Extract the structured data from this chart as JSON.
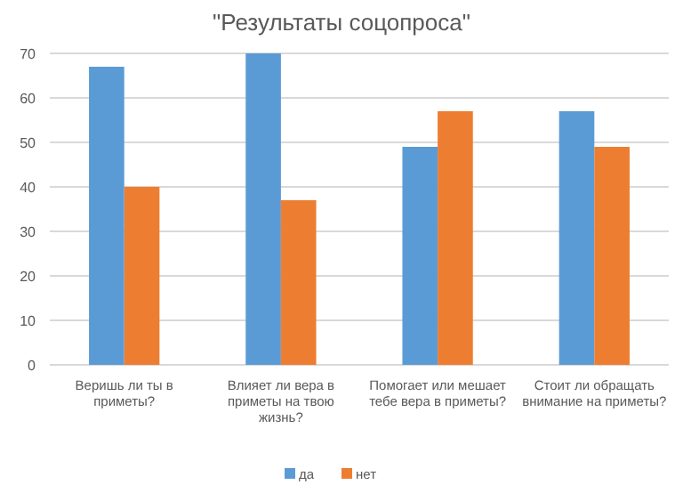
{
  "chart_data": {
    "type": "bar",
    "title": "\"Результаты соцопроса\"",
    "categories": [
      "Веришь ли ты в приметы?",
      "Влияет ли вера в приметы на твою жизнь?",
      "Помогает или мешает тебе вера в приметы?",
      "Стоит ли обращать внимание на приметы?"
    ],
    "series": [
      {
        "name": "да",
        "color": "#5b9bd5",
        "values": [
          67,
          70,
          49,
          57
        ]
      },
      {
        "name": "нет",
        "color": "#ed7d31",
        "values": [
          40,
          37,
          57,
          49
        ]
      }
    ],
    "ylim": [
      0,
      70
    ],
    "yticks": [
      0,
      10,
      20,
      30,
      40,
      50,
      60,
      70
    ],
    "grid": "y",
    "legend": "bottom"
  }
}
